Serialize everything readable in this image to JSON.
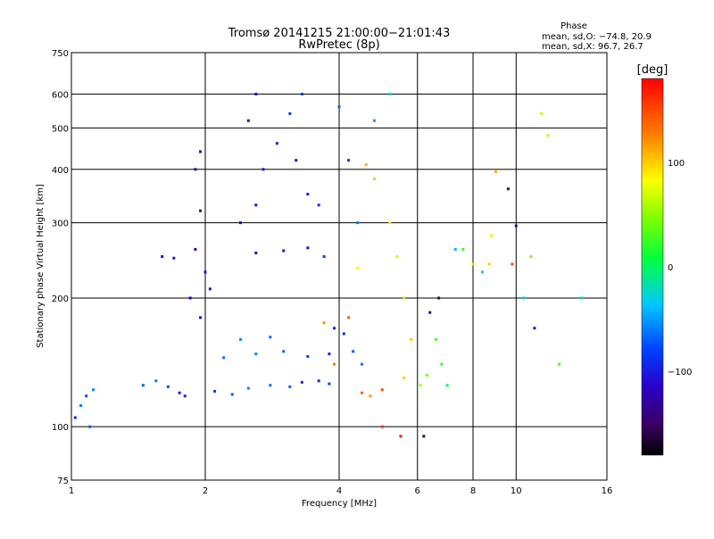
{
  "chart_data": {
    "type": "scatter",
    "title": "Tromsø 20141215 21:00:00−21:01:43",
    "subtitle": "RwPretec (8p)",
    "xlabel": "Frequency [MHz]",
    "ylabel": "Stationary phase Virtual Height [km]",
    "x_scale": "log",
    "y_scale": "log",
    "xlim": [
      1,
      16
    ],
    "ylim": [
      75,
      750
    ],
    "x_ticks": [
      "1",
      "2",
      "4",
      "6",
      "8",
      "10",
      "16"
    ],
    "x_tick_values": [
      1,
      2,
      4,
      6,
      8,
      10,
      16
    ],
    "y_ticks": [
      "75",
      "100",
      "200",
      "300",
      "400",
      "500",
      "600",
      "750"
    ],
    "y_tick_values": [
      75,
      100,
      200,
      300,
      400,
      500,
      600,
      750
    ],
    "grid": true,
    "phase_stats": {
      "heading": "Phase",
      "line_o": "mean, sd,O: −74.8, 20.9",
      "line_x": "mean, sd,X:  96.7, 26.7"
    },
    "colorbar": {
      "label": "[deg]",
      "ticks": [
        "100",
        "0",
        "−100"
      ],
      "tick_values": [
        100,
        0,
        -100
      ],
      "range": [
        -180,
        180
      ]
    },
    "series": [
      {
        "points": [
          [
            1.02,
            105,
            -90
          ],
          [
            1.05,
            112,
            -60
          ],
          [
            1.08,
            118,
            -80
          ],
          [
            1.1,
            100,
            -70
          ],
          [
            1.12,
            122,
            -55
          ],
          [
            1.45,
            125,
            -70
          ],
          [
            1.55,
            128,
            -60
          ],
          [
            1.65,
            124,
            -75
          ],
          [
            1.6,
            250,
            -110
          ],
          [
            1.7,
            248,
            -100
          ],
          [
            1.75,
            120,
            -95
          ],
          [
            1.8,
            118,
            -100
          ],
          [
            1.85,
            200,
            -115
          ],
          [
            1.9,
            260,
            -120
          ],
          [
            1.95,
            320,
            -110
          ],
          [
            1.9,
            400,
            -130
          ],
          [
            1.95,
            440,
            -120
          ],
          [
            2.0,
            230,
            -115
          ],
          [
            1.95,
            180,
            -110
          ],
          [
            2.05,
            210,
            -120
          ],
          [
            2.1,
            121,
            -85
          ],
          [
            2.3,
            119,
            -70
          ],
          [
            2.5,
            123,
            -60
          ],
          [
            2.8,
            125,
            -65
          ],
          [
            3.1,
            124,
            -70
          ],
          [
            3.3,
            127,
            -90
          ],
          [
            3.6,
            128,
            -95
          ],
          [
            3.8,
            126,
            -80
          ],
          [
            2.2,
            145,
            -65
          ],
          [
            2.6,
            148,
            -60
          ],
          [
            3.0,
            150,
            -70
          ],
          [
            3.4,
            146,
            -80
          ],
          [
            3.8,
            148,
            -100
          ],
          [
            2.4,
            160,
            -55
          ],
          [
            2.8,
            162,
            -70
          ],
          [
            2.4,
            300,
            -110
          ],
          [
            2.6,
            330,
            -105
          ],
          [
            2.7,
            400,
            -100
          ],
          [
            2.9,
            460,
            -95
          ],
          [
            2.5,
            520,
            -120
          ],
          [
            2.6,
            600,
            -110
          ],
          [
            3.1,
            540,
            -90
          ],
          [
            3.3,
            600,
            -85
          ],
          [
            3.2,
            420,
            -105
          ],
          [
            3.4,
            350,
            -95
          ],
          [
            3.6,
            330,
            -90
          ],
          [
            2.6,
            255,
            -115
          ],
          [
            3.0,
            258,
            -120
          ],
          [
            3.4,
            262,
            -110
          ],
          [
            3.7,
            250,
            -80
          ],
          [
            3.9,
            170,
            -100
          ],
          [
            4.1,
            165,
            -90
          ],
          [
            4.3,
            150,
            -70
          ],
          [
            4.5,
            140,
            -60
          ],
          [
            4.2,
            420,
            -85
          ],
          [
            4.4,
            300,
            -60
          ],
          [
            4.0,
            560,
            -70
          ],
          [
            4.8,
            520,
            -50
          ],
          [
            5.2,
            600,
            -30
          ],
          [
            4.2,
            180,
            140
          ],
          [
            4.5,
            120,
            140
          ],
          [
            4.7,
            118,
            120
          ],
          [
            5.0,
            122,
            150
          ],
          [
            3.7,
            175,
            120
          ],
          [
            3.9,
            140,
            130
          ],
          [
            4.4,
            235,
            80
          ],
          [
            4.6,
            410,
            110
          ],
          [
            4.8,
            380,
            100
          ],
          [
            5.2,
            300,
            90
          ],
          [
            5.4,
            250,
            70
          ],
          [
            5.6,
            200,
            60
          ],
          [
            5.8,
            160,
            100
          ],
          [
            5.6,
            130,
            100
          ],
          [
            6.1,
            125,
            55
          ],
          [
            6.3,
            132,
            40
          ],
          [
            6.6,
            160,
            30
          ],
          [
            6.8,
            140,
            20
          ],
          [
            7.0,
            125,
            10
          ],
          [
            6.4,
            185,
            -120
          ],
          [
            6.7,
            200,
            -150
          ],
          [
            5.0,
            100,
            160
          ],
          [
            5.5,
            95,
            170
          ],
          [
            6.2,
            95,
            -160
          ],
          [
            7.3,
            260,
            -40
          ],
          [
            7.6,
            260,
            20
          ],
          [
            8.0,
            240,
            60
          ],
          [
            8.4,
            230,
            -20
          ],
          [
            8.7,
            240,
            100
          ],
          [
            9.0,
            395,
            110
          ],
          [
            8.8,
            280,
            70
          ],
          [
            9.6,
            360,
            -150
          ],
          [
            10.0,
            295,
            -120
          ],
          [
            10.8,
            250,
            40
          ],
          [
            11.4,
            540,
            70
          ],
          [
            11.8,
            480,
            60
          ],
          [
            10.4,
            200,
            -30
          ],
          [
            12.5,
            140,
            30
          ],
          [
            14.0,
            200,
            -20
          ],
          [
            11.0,
            170,
            -110
          ],
          [
            9.8,
            240,
            150
          ]
        ]
      }
    ]
  }
}
